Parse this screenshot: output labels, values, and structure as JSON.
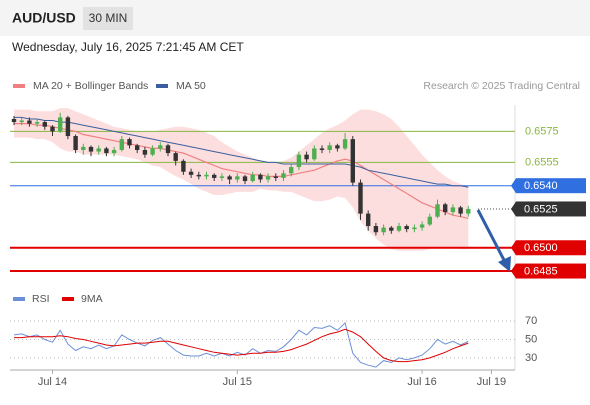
{
  "chart_data": {
    "type": "candlestick",
    "title": "AUD/USD",
    "timeframe": "30 MIN",
    "subtitle": "Wednesday, July 16, 2025 7:21:45 AM CET",
    "credit": "Research © 2025 Trading Central",
    "categories": [
      null,
      null,
      null,
      null,
      null,
      "Jul 14",
      null,
      null,
      null,
      null,
      null,
      null,
      null,
      null,
      null,
      null,
      null,
      null,
      null,
      null,
      null,
      null,
      null,
      null,
      null,
      null,
      null,
      null,
      null,
      "Jul 15",
      null,
      null,
      null,
      null,
      null,
      null,
      null,
      null,
      null,
      null,
      null,
      null,
      null,
      null,
      null,
      null,
      null,
      null,
      null,
      null,
      null,
      null,
      null,
      "Jul 16",
      null,
      null,
      null,
      null,
      null,
      null,
      null,
      null,
      "Jul 19",
      null,
      null,
      null
    ],
    "ylim": [
      0.6476,
      0.6592
    ],
    "open": [
      0.6583,
      0.6581,
      0.6582,
      0.658,
      0.6581,
      0.6578,
      0.6575,
      0.6584,
      0.6572,
      0.6563,
      0.6565,
      0.6562,
      0.6564,
      0.6561,
      0.6563,
      0.657,
      0.6566,
      0.6563,
      0.656,
      0.6564,
      0.6566,
      0.6561,
      0.6556,
      0.6549,
      0.6547,
      0.6546,
      0.6547,
      0.6545,
      0.6546,
      0.6544,
      0.6546,
      0.6543,
      0.6547,
      0.6544,
      0.6546,
      0.6545,
      0.6548,
      0.6552,
      0.656,
      0.6557,
      0.6564,
      0.6563,
      0.6566,
      0.6564,
      0.657,
      0.6542,
      0.6522,
      0.6514,
      0.651,
      0.6513,
      0.6511,
      0.6514,
      0.6512,
      0.6513,
      0.6515,
      0.652,
      0.6528,
      0.6523,
      0.6526,
      0.6522,
      null,
      null,
      null,
      null,
      null,
      null
    ],
    "high": [
      0.6585,
      0.6584,
      0.6584,
      0.6583,
      0.6582,
      0.6579,
      0.6587,
      0.6585,
      0.6573,
      0.6567,
      0.6566,
      0.6566,
      0.6565,
      0.6565,
      0.6572,
      0.6571,
      0.6567,
      0.6565,
      0.6566,
      0.6568,
      0.6567,
      0.6562,
      0.6557,
      0.6551,
      0.6549,
      0.6549,
      0.6548,
      0.6548,
      0.6547,
      0.6548,
      0.6547,
      0.6549,
      0.6548,
      0.6548,
      0.6548,
      0.655,
      0.6554,
      0.6562,
      0.6562,
      0.6566,
      0.6566,
      0.6568,
      0.6567,
      0.6574,
      0.6572,
      0.6544,
      0.6524,
      0.6516,
      0.6515,
      0.6514,
      0.6516,
      0.6515,
      0.6515,
      0.6517,
      0.6522,
      0.6531,
      0.6529,
      0.6528,
      0.6527,
      0.6527,
      null,
      null,
      null,
      null,
      null,
      null
    ],
    "low": [
      0.6579,
      0.6579,
      0.6578,
      0.6578,
      0.6576,
      0.6572,
      0.6574,
      0.657,
      0.6561,
      0.656,
      0.6559,
      0.656,
      0.6559,
      0.6559,
      0.6562,
      0.6564,
      0.6561,
      0.6558,
      0.6559,
      0.6562,
      0.6559,
      0.6553,
      0.6547,
      0.6545,
      0.6544,
      0.6544,
      0.6543,
      0.6543,
      0.6541,
      0.6542,
      0.6541,
      0.6542,
      0.6542,
      0.6542,
      0.6543,
      0.6543,
      0.6546,
      0.655,
      0.6555,
      0.6556,
      0.6561,
      0.6561,
      0.6562,
      0.6563,
      0.654,
      0.6518,
      0.6511,
      0.6508,
      0.6508,
      0.6509,
      0.651,
      0.651,
      0.651,
      0.6511,
      0.6514,
      0.6519,
      0.6521,
      0.6521,
      0.652,
      0.652,
      null,
      null,
      null,
      null,
      null,
      null
    ],
    "close": [
      0.6581,
      0.6582,
      0.658,
      0.6581,
      0.6578,
      0.6575,
      0.6584,
      0.6572,
      0.6563,
      0.6565,
      0.6562,
      0.6564,
      0.6561,
      0.6563,
      0.657,
      0.6566,
      0.6563,
      0.656,
      0.6564,
      0.6566,
      0.6561,
      0.6556,
      0.6549,
      0.6547,
      0.6546,
      0.6547,
      0.6545,
      0.6546,
      0.6544,
      0.6546,
      0.6543,
      0.6547,
      0.6544,
      0.6546,
      0.6545,
      0.6548,
      0.6552,
      0.656,
      0.6557,
      0.6564,
      0.6563,
      0.6566,
      0.6564,
      0.657,
      0.6542,
      0.6522,
      0.6514,
      0.651,
      0.6513,
      0.6511,
      0.6514,
      0.6512,
      0.6513,
      0.6515,
      0.652,
      0.6528,
      0.6523,
      0.6526,
      0.6522,
      0.6525,
      null,
      null,
      null,
      null,
      null,
      null
    ],
    "up_color": "#4caf50",
    "down_color": "#333333",
    "series": [
      {
        "name": "MA 20 + Bollinger Bands",
        "color": "#f08080",
        "values": [
          0.658,
          0.658,
          0.658,
          0.6579,
          0.6579,
          0.6578,
          0.6577,
          0.6576,
          0.6575,
          0.6573,
          0.6572,
          0.6571,
          0.657,
          0.6569,
          0.6568,
          0.6567,
          0.6566,
          0.6565,
          0.6564,
          0.6564,
          0.6563,
          0.6562,
          0.6561,
          0.6559,
          0.6557,
          0.6555,
          0.6553,
          0.6551,
          0.655,
          0.6549,
          0.6548,
          0.6547,
          0.6547,
          0.6546,
          0.6546,
          0.6546,
          0.6547,
          0.6548,
          0.6549,
          0.655,
          0.6552,
          0.6554,
          0.6556,
          0.6557,
          0.6556,
          0.6553,
          0.655,
          0.6547,
          0.6544,
          0.6541,
          0.6538,
          0.6535,
          0.6532,
          0.6529,
          0.6527,
          0.6525,
          0.6523,
          0.6521,
          0.652,
          0.6519,
          null,
          null,
          null,
          null,
          null,
          null
        ],
        "upper": [
          0.6589,
          0.6589,
          0.6589,
          0.6588,
          0.6588,
          0.6588,
          0.659,
          0.659,
          0.6588,
          0.6586,
          0.6584,
          0.6582,
          0.658,
          0.6578,
          0.6577,
          0.6576,
          0.6575,
          0.6575,
          0.6575,
          0.6576,
          0.6577,
          0.6578,
          0.6578,
          0.6577,
          0.6576,
          0.6574,
          0.6572,
          0.6568,
          0.6565,
          0.6562,
          0.656,
          0.6558,
          0.6556,
          0.6555,
          0.6555,
          0.6556,
          0.6558,
          0.6562,
          0.6566,
          0.657,
          0.6574,
          0.6577,
          0.6579,
          0.6582,
          0.6586,
          0.6589,
          0.6589,
          0.6588,
          0.6586,
          0.6583,
          0.6578,
          0.6572,
          0.6566,
          0.656,
          0.6555,
          0.655,
          0.6546,
          0.6543,
          0.6541,
          0.654,
          null,
          null,
          null,
          null,
          null,
          null
        ],
        "lower": [
          0.6571,
          0.6571,
          0.6571,
          0.657,
          0.657,
          0.6568,
          0.6564,
          0.6562,
          0.6562,
          0.656,
          0.656,
          0.656,
          0.656,
          0.656,
          0.6559,
          0.6558,
          0.6557,
          0.6555,
          0.6553,
          0.6552,
          0.6549,
          0.6546,
          0.6544,
          0.6541,
          0.6538,
          0.6536,
          0.6534,
          0.6534,
          0.6535,
          0.6536,
          0.6536,
          0.6536,
          0.6538,
          0.6537,
          0.6537,
          0.6536,
          0.6536,
          0.6534,
          0.6532,
          0.653,
          0.653,
          0.6531,
          0.6533,
          0.6532,
          0.6526,
          0.6517,
          0.6511,
          0.6506,
          0.6502,
          0.6499,
          0.6498,
          0.6498,
          0.6498,
          0.6498,
          0.6499,
          0.65,
          0.65,
          0.65,
          0.6499,
          0.6499,
          null,
          null,
          null,
          null,
          null,
          null
        ],
        "band_color": "#fcd6d6"
      },
      {
        "name": "MA 50",
        "color": "#3a5fa0",
        "values": [
          0.6584,
          0.6584,
          0.6583,
          0.6583,
          0.6582,
          0.6582,
          0.6581,
          0.6581,
          0.658,
          0.6579,
          0.6578,
          0.6577,
          0.6576,
          0.6575,
          0.6574,
          0.6573,
          0.6572,
          0.6571,
          0.657,
          0.6569,
          0.6568,
          0.6567,
          0.6566,
          0.6565,
          0.6564,
          0.6563,
          0.6562,
          0.6561,
          0.656,
          0.6559,
          0.6558,
          0.6557,
          0.6556,
          0.6555,
          0.6555,
          0.6554,
          0.6554,
          0.6554,
          0.6554,
          0.6554,
          0.6554,
          0.6554,
          0.6554,
          0.6554,
          0.6553,
          0.6552,
          0.655,
          0.6549,
          0.6548,
          0.6547,
          0.6546,
          0.6545,
          0.6544,
          0.6543,
          0.6542,
          0.6541,
          0.6541,
          0.654,
          0.654,
          0.6539,
          null,
          null,
          null,
          null,
          null,
          null
        ]
      }
    ],
    "levels": [
      {
        "value": 0.6575,
        "color": "#8ab640",
        "kind": "support"
      },
      {
        "value": 0.6555,
        "color": "#8ab640",
        "kind": "support"
      },
      {
        "value": 0.654,
        "label": "0.6540",
        "color": "#2f6fdf",
        "kind": "pivot"
      },
      {
        "value": 0.6525,
        "color": "#333333",
        "kind": "last"
      },
      {
        "value": 0.65,
        "label": "0.6500",
        "color": "#e00000",
        "kind": "target"
      },
      {
        "value": 0.6485,
        "color": "#e00000",
        "kind": "target"
      }
    ],
    "rsi": {
      "ylim": [
        19,
        82
      ],
      "yticks": [
        30,
        50,
        70
      ],
      "series": [
        {
          "name": "RSI",
          "color": "#6b8fd8",
          "values": [
            55,
            56,
            53,
            55,
            50,
            47,
            60,
            45,
            38,
            42,
            40,
            44,
            40,
            43,
            55,
            50,
            46,
            43,
            49,
            52,
            45,
            38,
            33,
            32,
            32,
            35,
            32,
            35,
            32,
            36,
            33,
            40,
            35,
            38,
            37,
            42,
            50,
            60,
            55,
            63,
            62,
            65,
            60,
            68,
            35,
            25,
            22,
            20,
            27,
            25,
            30,
            28,
            30,
            33,
            40,
            50,
            45,
            48,
            44,
            48,
            null,
            null,
            null,
            null,
            null,
            null
          ]
        },
        {
          "name": "9MA",
          "color": "#e00000",
          "values": [
            52,
            52,
            53,
            53,
            53,
            53,
            54,
            53,
            51,
            50,
            48,
            46,
            44,
            43,
            44,
            45,
            46,
            46,
            47,
            48,
            48,
            46,
            44,
            42,
            40,
            38,
            36,
            35,
            34,
            33,
            34,
            35,
            35,
            36,
            36,
            37,
            39,
            42,
            45,
            49,
            53,
            56,
            58,
            61,
            58,
            53,
            45,
            37,
            30,
            27,
            26,
            26,
            27,
            28,
            30,
            33,
            36,
            40,
            43,
            46,
            null,
            null,
            null,
            null,
            null,
            null
          ]
        }
      ]
    }
  }
}
